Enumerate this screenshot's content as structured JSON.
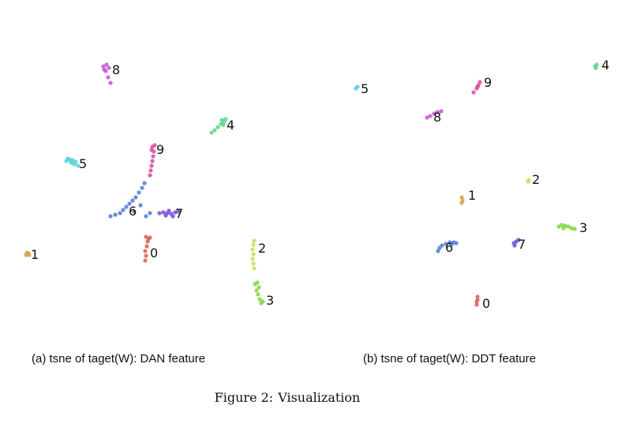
{
  "figure": {
    "caption_prefix": "Figure 2:",
    "caption_text": "Visualization"
  },
  "chart_data": [
    {
      "type": "scatter",
      "title": "(a) tsne of taget(W): DAN feature",
      "xlim": [
        0,
        400
      ],
      "ylim": [
        400,
        0
      ],
      "grid": false,
      "axes": "off",
      "class_colors": {
        "0": "#e0655c",
        "1": "#d6a552",
        "2": "#c9e05e",
        "3": "#86d84a",
        "4": "#5ed992",
        "5": "#5dcfdb",
        "6": "#5a7fd9",
        "7": "#7a55d6",
        "8": "#c65ad6",
        "9": "#d952a3"
      },
      "clusters": [
        {
          "label": "0",
          "label_pos": [
            190,
            104
          ],
          "color": "#e0655c",
          "points": [
            [
              184,
              100
            ],
            [
              185,
              106
            ],
            [
              184,
              112
            ],
            [
              186,
              118
            ],
            [
              187,
              124
            ],
            [
              185,
              130
            ],
            [
              188,
              127
            ],
            [
              190,
              129
            ]
          ]
        },
        {
          "label": "1",
          "label_pos": [
            39,
            102
          ],
          "color": "#d6a552",
          "points": [
            [
              33,
              107
            ],
            [
              35,
              108
            ],
            [
              37,
              107
            ],
            [
              34,
              110
            ],
            [
              36,
              109
            ]
          ]
        },
        {
          "label": "2",
          "label_pos": [
            327,
            110
          ],
          "color": "#c9e05e",
          "points": [
            [
              322,
              90
            ],
            [
              321,
              96
            ],
            [
              320,
              102
            ],
            [
              321,
              108
            ],
            [
              320,
              114
            ],
            [
              321,
              120
            ],
            [
              322,
              125
            ]
          ]
        },
        {
          "label": "3",
          "label_pos": [
            337,
            44
          ],
          "color": "#86d84a",
          "points": [
            [
              331,
              46
            ],
            [
              333,
              48
            ],
            [
              329,
              51
            ],
            [
              327,
              57
            ],
            [
              325,
              62
            ],
            [
              328,
              66
            ],
            [
              323,
              70
            ],
            [
              326,
              72
            ]
          ]
        },
        {
          "label": "4",
          "label_pos": [
            287,
            266
          ],
          "color": "#5ed992",
          "points": [
            [
              268,
              262
            ],
            [
              272,
              265
            ],
            [
              276,
              269
            ],
            [
              280,
              273
            ],
            [
              284,
              276
            ],
            [
              281,
              278
            ],
            [
              286,
              279
            ],
            [
              283,
              272
            ]
          ]
        },
        {
          "label": "5",
          "label_pos": [
            100,
            217
          ],
          "color": "#5dcfdb",
          "points": [
            [
              84,
              226
            ],
            [
              88,
              228
            ],
            [
              92,
              227
            ],
            [
              96,
              225
            ],
            [
              86,
              229
            ],
            [
              90,
              224
            ],
            [
              94,
              222
            ],
            [
              99,
              220
            ]
          ]
        },
        {
          "label": "6",
          "label_pos": [
            163,
            157
          ],
          "color": "#5a7fd9",
          "points": [
            [
              140,
              156
            ],
            [
              146,
              158
            ],
            [
              152,
              160
            ],
            [
              156,
              164
            ],
            [
              160,
              168
            ],
            [
              164,
              172
            ],
            [
              168,
              176
            ],
            [
              172,
              180
            ],
            [
              176,
              186
            ],
            [
              180,
              192
            ],
            [
              183,
              198
            ],
            [
              178,
              170
            ],
            [
              185,
              156
            ],
            [
              190,
              160
            ],
            [
              170,
              162
            ]
          ]
        },
        {
          "label": "7",
          "label_pos": [
            222,
            154
          ],
          "color": "#7a55d6",
          "points": [
            [
              202,
              160
            ],
            [
              207,
              161
            ],
            [
              212,
              160
            ],
            [
              217,
              159
            ],
            [
              222,
              161
            ],
            [
              226,
              162
            ],
            [
              210,
              157
            ],
            [
              214,
              163
            ],
            [
              219,
              156
            ]
          ]
        },
        {
          "label": "8",
          "label_pos": [
            142,
            336
          ],
          "color": "#c65ad6",
          "points": [
            [
              140,
              325
            ],
            [
              137,
              332
            ],
            [
              134,
              340
            ],
            [
              131,
              346
            ],
            [
              135,
              348
            ],
            [
              138,
              344
            ],
            [
              132,
              342
            ]
          ]
        },
        {
          "label": "9",
          "label_pos": [
            198,
            235
          ],
          "color": "#d952a3",
          "points": [
            [
              190,
              208
            ],
            [
              191,
              214
            ],
            [
              192,
              220
            ],
            [
              193,
              226
            ],
            [
              194,
              232
            ],
            [
              195,
              238
            ],
            [
              193,
              244
            ],
            [
              196,
              246
            ],
            [
              192,
              240
            ]
          ]
        }
      ]
    },
    {
      "type": "scatter",
      "title": "(b) tsne of taget(W): DDT feature",
      "xlim": [
        0,
        400
      ],
      "ylim": [
        400,
        0
      ],
      "grid": false,
      "axes": "off",
      "class_colors": {
        "0": "#e0655c",
        "1": "#d6a552",
        "2": "#c9e05e",
        "3": "#86d84a",
        "4": "#5ed992",
        "5": "#5dcfdb",
        "6": "#5a7fd9",
        "7": "#7a55d6",
        "8": "#c65ad6",
        "9": "#d952a3"
      },
      "clusters": [
        {
          "label": "0",
          "label_pos": [
            209,
            40
          ],
          "color": "#e0655c",
          "points": [
            [
              202,
              44
            ],
            [
              203,
              50
            ],
            [
              203,
              54
            ],
            [
              202,
              48
            ]
          ]
        },
        {
          "label": "1",
          "label_pos": [
            191,
            177
          ],
          "color": "#d6a552",
          "points": [
            [
              183,
              173
            ],
            [
              184,
              176
            ],
            [
              183,
              180
            ]
          ]
        },
        {
          "label": "2",
          "label_pos": [
            272,
            197
          ],
          "color": "#c9e05e",
          "points": [
            [
              267,
              200
            ],
            [
              268,
              202
            ]
          ]
        },
        {
          "label": "3",
          "label_pos": [
            332,
            136
          ],
          "color": "#86d84a",
          "points": [
            [
              306,
              143
            ],
            [
              310,
              145
            ],
            [
              314,
              144
            ],
            [
              318,
              143
            ],
            [
              322,
              141
            ],
            [
              326,
              140
            ],
            [
              312,
              141
            ]
          ]
        },
        {
          "label": "4",
          "label_pos": [
            360,
            342
          ],
          "color": "#5ed992",
          "points": [
            [
              352,
              346
            ],
            [
              354,
              348
            ],
            [
              353,
              344
            ]
          ]
        },
        {
          "label": "5",
          "label_pos": [
            55,
            312
          ],
          "color": "#5dcfdb",
          "points": [
            [
              49,
              318
            ],
            [
              51,
              320
            ]
          ]
        },
        {
          "label": "6",
          "label_pos": [
            162,
            111
          ],
          "color": "#5a7fd9",
          "points": [
            [
              153,
              112
            ],
            [
              155,
              116
            ],
            [
              158,
              119
            ],
            [
              163,
              121
            ],
            [
              168,
              123
            ],
            [
              173,
              123
            ],
            [
              176,
              122
            ],
            [
              170,
              120
            ]
          ]
        },
        {
          "label": "7",
          "label_pos": [
            254,
            115
          ],
          "color": "#7a55d6",
          "points": [
            [
              249,
              122
            ],
            [
              252,
              124
            ],
            [
              255,
              126
            ],
            [
              250,
              119
            ]
          ]
        },
        {
          "label": "8",
          "label_pos": [
            147,
            276
          ],
          "color": "#c65ad6",
          "points": [
            [
              139,
              281
            ],
            [
              143,
              283
            ],
            [
              148,
              286
            ],
            [
              152,
              288
            ],
            [
              157,
              289
            ]
          ]
        },
        {
          "label": "9",
          "label_pos": [
            211,
            320
          ],
          "color": "#d952a3",
          "points": [
            [
              198,
              313
            ],
            [
              202,
              318
            ],
            [
              204,
              322
            ],
            [
              206,
              326
            ],
            [
              203,
              320
            ]
          ]
        }
      ]
    }
  ]
}
